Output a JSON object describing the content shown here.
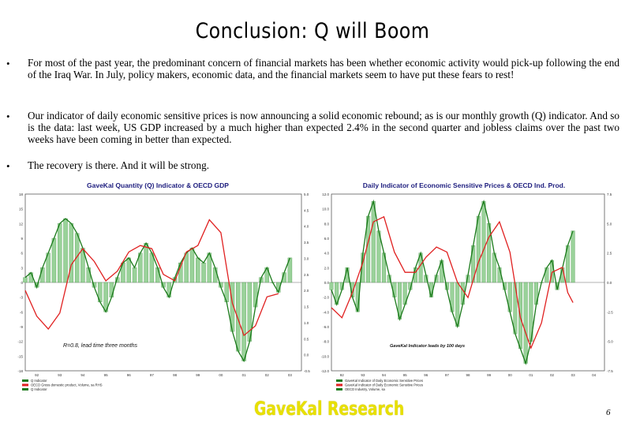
{
  "title": "Conclusion: Q will Boom",
  "bullets": [
    "For most of the past year, the predominant concern of financial markets has been whether economic activity would pick-up following the end of the Iraq War. In July, policy makers, economic data, and the financial markets seem to have put these fears to rest!",
    "Our indicator of daily economic sensitive prices is now announcing a solid economic rebound; as is our monthly growth (Q) indicator. And so is the data: last week, US GDP increased by a much higher than expected 2.4% in the second quarter and jobless claims over the past two weeks have been coming in better than expected.",
    "The recovery is there. And it will be strong."
  ],
  "bullet_symbol": "•",
  "footer": "GaveKal Research",
  "page_number": "6",
  "chart_data": [
    {
      "type": "bar",
      "title": "GaveKal Quantity (Q) Indicator & OECD GDP",
      "ylabel_right": "YoY % Change",
      "annotation": "R=0.8, lead time three months",
      "x_ticks": [
        "92",
        "93",
        "94",
        "95",
        "96",
        "97",
        "98",
        "99",
        "00",
        "01",
        "02",
        "03"
      ],
      "y_left_ticks": [
        "18",
        "15",
        "12",
        "9",
        "6",
        "3",
        "0",
        "-3",
        "-6",
        "-9",
        "-12",
        "-15",
        "-18"
      ],
      "y_right_ticks": [
        "5.0",
        "4.5",
        "4.0",
        "3.5",
        "3.0",
        "2.5",
        "2.0",
        "1.5",
        "1.0",
        "0.5",
        "0.0",
        "-0.5"
      ],
      "ylim_left": [
        -18,
        18
      ],
      "ylim_right": [
        -0.5,
        5.0
      ],
      "legend": [
        "Q Indicator",
        "OECD Gross domestic product, Volume, sa RHS",
        "Q Indicator"
      ],
      "series": [
        {
          "name": "Q Indicator",
          "color": "#1a7a1a",
          "axis": "left",
          "x": [
            1992.0,
            1992.25,
            1992.5,
            1992.75,
            1993.0,
            1993.25,
            1993.5,
            1993.75,
            1994.0,
            1994.25,
            1994.5,
            1994.75,
            1995.0,
            1995.25,
            1995.5,
            1995.75,
            1996.0,
            1996.25,
            1996.5,
            1996.75,
            1997.0,
            1997.25,
            1997.5,
            1997.75,
            1998.0,
            1998.25,
            1998.5,
            1998.75,
            1999.0,
            1999.25,
            1999.5,
            1999.75,
            2000.0,
            2000.25,
            2000.5,
            2000.75,
            2001.0,
            2001.25,
            2001.5,
            2001.75,
            2002.0,
            2002.25,
            2002.5,
            2002.75,
            2003.0,
            2003.25,
            2003.5
          ],
          "values": [
            1,
            2,
            -1,
            3,
            6,
            9,
            12,
            13,
            12,
            10,
            7,
            3,
            -1,
            -4,
            -6,
            -3,
            1,
            4,
            5,
            3,
            6,
            8,
            6,
            3,
            -1,
            -3,
            1,
            4,
            6,
            7,
            5,
            4,
            6,
            3,
            -1,
            -4,
            -10,
            -14,
            -16,
            -12,
            -5,
            1,
            3,
            0,
            -2,
            2,
            5
          ]
        },
        {
          "name": "OECD Gross domestic product, Volume, sa RHS",
          "color": "#e02020",
          "axis": "right",
          "x": [
            1992.0,
            1992.5,
            1993.0,
            1993.5,
            1994.0,
            1994.5,
            1995.0,
            1995.5,
            1996.0,
            1996.5,
            1997.0,
            1997.5,
            1998.0,
            1998.5,
            1999.0,
            1999.5,
            2000.0,
            2000.5,
            2001.0,
            2001.5,
            2002.0,
            2002.5,
            2003.0
          ],
          "values": [
            2.0,
            1.2,
            0.8,
            1.3,
            2.8,
            3.3,
            2.9,
            2.3,
            2.6,
            3.2,
            3.4,
            3.3,
            2.5,
            2.3,
            3.2,
            3.4,
            4.2,
            3.8,
            1.6,
            0.6,
            0.9,
            1.8,
            1.9
          ]
        }
      ]
    },
    {
      "type": "bar",
      "title": "Daily Indicator of Economic Sensitive Prices & OECD Ind. Prod.",
      "annotation": "GaveKal Indicator leads by 100 days",
      "x_ticks": [
        "92",
        "93",
        "94",
        "95",
        "96",
        "97",
        "98",
        "99",
        "00",
        "01",
        "02",
        "03",
        "04"
      ],
      "y_left_ticks": [
        "12.0",
        "10.0",
        "8.0",
        "6.0",
        "4.0",
        "2.0",
        "0.0",
        "-2.0",
        "-4.0",
        "-6.0",
        "-8.0",
        "-10.0",
        "-12.0"
      ],
      "y_right_ticks": [
        "7.5",
        "5.0",
        "2.5",
        "0.0",
        "-2.5",
        "-5.0",
        "-7.5"
      ],
      "ylim_left": [
        -12,
        12
      ],
      "ylim_right": [
        -8.75,
        8.75
      ],
      "legend": [
        "GaveKal Indicator of Daily Economic Sensitive Prices",
        "GaveKal Indicator of Daily Economic Sensitive Prices",
        "OECD Industry, Volume, sa"
      ],
      "series": [
        {
          "name": "GaveKal Indicator of Daily Economic Sensitive Prices",
          "color": "#1a7a1a",
          "axis": "left",
          "x": [
            1992.0,
            1992.25,
            1992.5,
            1992.75,
            1993.0,
            1993.25,
            1993.5,
            1993.75,
            1994.0,
            1994.25,
            1994.5,
            1994.75,
            1995.0,
            1995.25,
            1995.5,
            1995.75,
            1996.0,
            1996.25,
            1996.5,
            1996.75,
            1997.0,
            1997.25,
            1997.5,
            1997.75,
            1998.0,
            1998.25,
            1998.5,
            1998.75,
            1999.0,
            1999.25,
            1999.5,
            1999.75,
            2000.0,
            2000.25,
            2000.5,
            2000.75,
            2001.0,
            2001.25,
            2001.5,
            2001.75,
            2002.0,
            2002.25,
            2002.5,
            2002.75,
            2003.0,
            2003.25,
            2003.5
          ],
          "values": [
            -1,
            -3,
            -1,
            2,
            -2,
            -4,
            4,
            9,
            11,
            7,
            4,
            1,
            -2,
            -5,
            -3,
            -1,
            2,
            4,
            1,
            -2,
            1,
            3,
            -1,
            -4,
            -6,
            -3,
            1,
            5,
            9,
            11,
            8,
            4,
            2,
            -1,
            -4,
            -7,
            -9,
            -11,
            -8,
            -3,
            0,
            2,
            3,
            -1,
            2,
            5,
            7
          ]
        },
        {
          "name": "OECD Industry, Volume, sa",
          "color": "#e02020",
          "axis": "right",
          "x": [
            1992.0,
            1992.5,
            1993.0,
            1993.5,
            1994.0,
            1994.5,
            1995.0,
            1995.5,
            1996.0,
            1996.5,
            1997.0,
            1997.5,
            1998.0,
            1998.5,
            1999.0,
            1999.5,
            2000.0,
            2000.5,
            2001.0,
            2001.5,
            2002.0,
            2002.5,
            2003.0,
            2003.25,
            2003.5
          ],
          "values": [
            -2.5,
            -3.5,
            -1,
            2,
            6,
            6.5,
            3,
            1,
            1,
            2.5,
            3.5,
            3,
            0,
            -1.5,
            2,
            4.5,
            6,
            3,
            -3.5,
            -6.5,
            -4,
            1,
            1.5,
            -1,
            -2
          ]
        }
      ]
    }
  ]
}
